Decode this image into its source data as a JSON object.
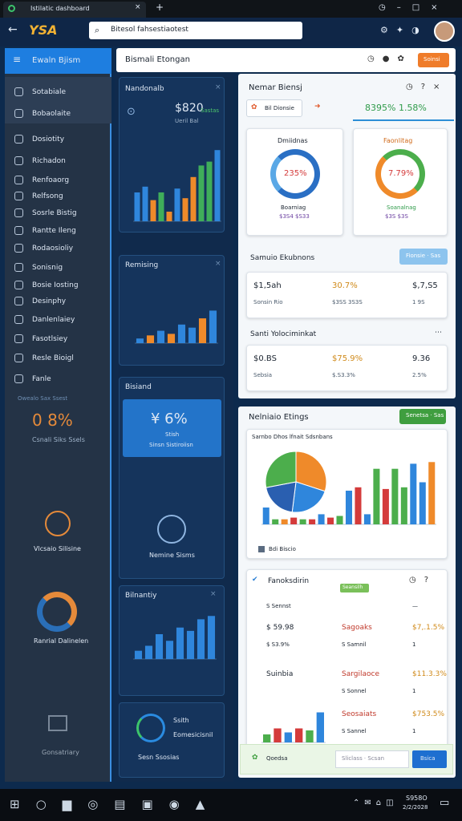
{
  "browser": {
    "tab": "Istilatic dashboard",
    "logo": "YSA",
    "address": "Bitesol fahsestiaotest"
  },
  "sidebar": {
    "title": "Ewaln Bjism",
    "items": [
      "Sotabiale",
      "Bobaolaite",
      "Dosiotity",
      "Richadon",
      "Renfoaorg",
      "Relfsong",
      "Sosrle Bistig",
      "Rantte Ileng",
      "Rodaosioliy",
      "Sonisnig",
      "Bosie Iosting",
      "Desinphy",
      "Danlenlaiey",
      "Fasotlsiey",
      "Resle Bioigl",
      "Fanle"
    ],
    "stat": {
      "caption": "Owealo Sax Ssest",
      "value": "0 8%",
      "sub": "Csnali Siks Ssels"
    },
    "widgets": [
      "Vlcsaio Silisine",
      "Ranrial Dalinelen",
      "Gonsatriary"
    ]
  },
  "middle": [
    {
      "title": "Nandonalb",
      "value": "$820",
      "badge": "Sastas",
      "sub": "Ueril Bal",
      "chart": {
        "ylim": [
          0,
          80
        ],
        "values": [
          30,
          36,
          22,
          30,
          10,
          34,
          24,
          46,
          58,
          62,
          74
        ],
        "colors": [
          "#2f86dc",
          "#2f86dc",
          "#ef8a2a",
          "#3fae5a",
          "#ef8a2a",
          "#2f86dc",
          "#ef8a2a",
          "#ef8a2a",
          "#3fae5a",
          "#3fae5a",
          "#2f86dc"
        ]
      }
    },
    {
      "title": "Remising",
      "chart": {
        "ylim": [
          0,
          60
        ],
        "values": [
          6,
          10,
          16,
          12,
          24,
          20,
          32,
          42
        ],
        "colors": [
          "#2f86dc",
          "#ef8a2a",
          "#2f86dc",
          "#ef8a2a",
          "#2f86dc",
          "#2f86dc",
          "#ef8a2a",
          "#2f86dc"
        ]
      }
    },
    {
      "title": "Bisiand",
      "value": "¥ 6%",
      "label": "Stish",
      "sub": "Sinsn Sistiroiisn",
      "caption": "Nemine Sisms"
    },
    {
      "title": "Bilnantiy",
      "chart": {
        "ylim": [
          0,
          60
        ],
        "values": [
          10,
          16,
          30,
          22,
          38,
          34,
          48,
          52
        ],
        "colors": [
          "#2f86dc",
          "#2f86dc",
          "#2f86dc",
          "#2f86dc",
          "#2f86dc",
          "#2f86dc",
          "#2f86dc",
          "#2f86dc"
        ]
      }
    },
    {
      "title": "Ssith",
      "sub": "Eomesicisnil",
      "caption": "Sesn Ssosias"
    }
  ],
  "main": {
    "title": "Bismali Etongan",
    "button": "Soinsi"
  },
  "panel1": {
    "title": "Nemar Biensj",
    "filter": "Bil Dionsie",
    "kpi": "8395% 1.58%",
    "donuts": [
      {
        "title": "Dmiidnas",
        "value": "235%",
        "label": "Boarniag",
        "sub": "$3S4 $S33"
      },
      {
        "title": "Faonlitag",
        "value": "7.79%",
        "label": "Soanalnag",
        "sub": "$3S $3S"
      }
    ],
    "summary": {
      "title": "Samuio Ekubnons",
      "button": "Fionsie · Sas",
      "rows": [
        [
          "$1,5ah",
          "30.7%",
          "$,7,S5"
        ],
        [
          "Sonsin Rio",
          "$3SS 3S3S",
          "1 9S"
        ]
      ]
    },
    "second": {
      "title": "Santi Yolociminkat",
      "rows": [
        [
          "$0.BS",
          "$75.9%",
          "9.36"
        ],
        [
          "Sebsia",
          "$.S3.3%",
          "2.5%"
        ]
      ]
    }
  },
  "panel2": {
    "title": "Nelniaio Etings",
    "button": "Senetsa · Sas",
    "chart": {
      "caption": "Sarnbo Dhos lfnait Sdsnbans",
      "legend": "Bdi Biscio",
      "pie": {
        "values": [
          30,
          22,
          20,
          28
        ],
        "colors": [
          "#ef8a2a",
          "#2f86dc",
          "#2a5fb0",
          "#4cae4c"
        ]
      },
      "bars": {
        "ylim": [
          0,
          80
        ],
        "values": [
          20,
          6,
          6,
          8,
          6,
          6,
          12,
          8,
          10,
          40,
          44,
          12,
          66,
          42,
          66,
          44,
          72,
          50,
          74
        ],
        "colors": [
          "#2f86dc",
          "#4cae4c",
          "#ef8a2a",
          "#d43b3b",
          "#4cae4c",
          "#d43b3b",
          "#2f86dc",
          "#d43b3b",
          "#4cae4c",
          "#2f86dc",
          "#d43b3b",
          "#2f86dc",
          "#4cae4c",
          "#d43b3b",
          "#4cae4c",
          "#4cae4c",
          "#2f86dc",
          "#2f86dc",
          "#ef8a2a"
        ]
      }
    },
    "list": {
      "title": "Fanoksdirin",
      "badge": "Seansilh",
      "rows": [
        [
          "S Sennst",
          "",
          "—"
        ],
        [
          "$ 59.98",
          "Sagoaks",
          "$7,.1.5%"
        ],
        [
          "$ S3.9%",
          "S Samnil",
          "1"
        ],
        [
          "Suinbia",
          "Sargilaoce",
          "$11.3.3%"
        ],
        [
          "",
          "S Sonnel",
          "1"
        ],
        [
          "",
          "Seosaiats",
          "$753.5%"
        ],
        [
          "",
          "S Sannel",
          "1"
        ]
      ],
      "chart": {
        "ylim": [
          0,
          40
        ],
        "values": [
          8,
          14,
          10,
          14,
          12,
          30
        ],
        "colors": [
          "#4cae4c",
          "#d43b3b",
          "#2f86dc",
          "#d43b3b",
          "#4cae4c",
          "#2f86dc"
        ]
      }
    },
    "action": {
      "label": "Qoedsa",
      "input": "Sliclass · Scsan",
      "button": "Bsica"
    }
  },
  "taskbar": {
    "time": "S958O",
    "date": "2/2/2028"
  }
}
